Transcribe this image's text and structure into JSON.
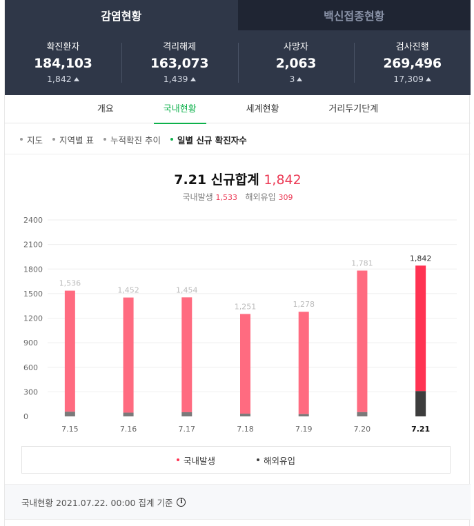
{
  "tabs": [
    {
      "label": "감염현황",
      "active": true
    },
    {
      "label": "백신접종현황",
      "active": false
    }
  ],
  "stats": [
    {
      "label": "확진환자",
      "value": "184,103",
      "delta": "1,842"
    },
    {
      "label": "격리해제",
      "value": "163,073",
      "delta": "1,439"
    },
    {
      "label": "사망자",
      "value": "2,063",
      "delta": "3"
    },
    {
      "label": "검사진행",
      "value": "269,496",
      "delta": "17,309"
    }
  ],
  "subnav": [
    {
      "label": "개요",
      "active": false
    },
    {
      "label": "국내현황",
      "active": true
    },
    {
      "label": "세계현황",
      "active": false
    },
    {
      "label": "거리두기단계",
      "active": false
    }
  ],
  "filters": [
    {
      "label": "지도",
      "active": false
    },
    {
      "label": "지역별 표",
      "active": false
    },
    {
      "label": "누적확진 추이",
      "active": false
    },
    {
      "label": "일별 신규 확진자수",
      "active": true
    }
  ],
  "chart_header": {
    "date": "7.21",
    "title_text": "신규합계",
    "total": "1,842",
    "domestic_label": "국내발생",
    "domestic_value": "1,533",
    "overseas_label": "해외유입",
    "overseas_value": "309"
  },
  "chart_data": {
    "type": "bar",
    "stacked": true,
    "categories": [
      "7.15",
      "7.16",
      "7.17",
      "7.18",
      "7.19",
      "7.20",
      "7.21"
    ],
    "totals": [
      1536,
      1452,
      1454,
      1251,
      1278,
      1781,
      1842
    ],
    "total_labels": [
      "1,536",
      "1,452",
      "1,454",
      "1,251",
      "1,278",
      "1,781",
      "1,842"
    ],
    "series": [
      {
        "name": "국내발생",
        "values": [
          1479,
          1406,
          1403,
          1218,
          1250,
          1729,
          1533
        ]
      },
      {
        "name": "해외유입",
        "values": [
          57,
          46,
          51,
          33,
          28,
          52,
          309
        ]
      }
    ],
    "y_ticks": [
      "2400",
      "2100",
      "1800",
      "1500",
      "1200",
      "900",
      "600",
      "300",
      "0"
    ],
    "ylim": [
      0,
      2400
    ],
    "highlight_index": 6,
    "grid": true,
    "legend_position": "bottom"
  },
  "colors": {
    "domestic": "#ff6b80",
    "domestic_highlight": "#ff3352",
    "overseas": "#7a7a7a",
    "overseas_highlight": "#3d3d3d",
    "accent_green": "#0db14b",
    "header_bg": "#2f3748"
  },
  "legend": [
    {
      "label": "국내발생",
      "color": "#ff3352"
    },
    {
      "label": "해외유입",
      "color": "#3d3d3d"
    }
  ],
  "footer": {
    "text": "국내현황 2021.07.22. 00:00 집계 기준",
    "icon": "info-icon"
  }
}
